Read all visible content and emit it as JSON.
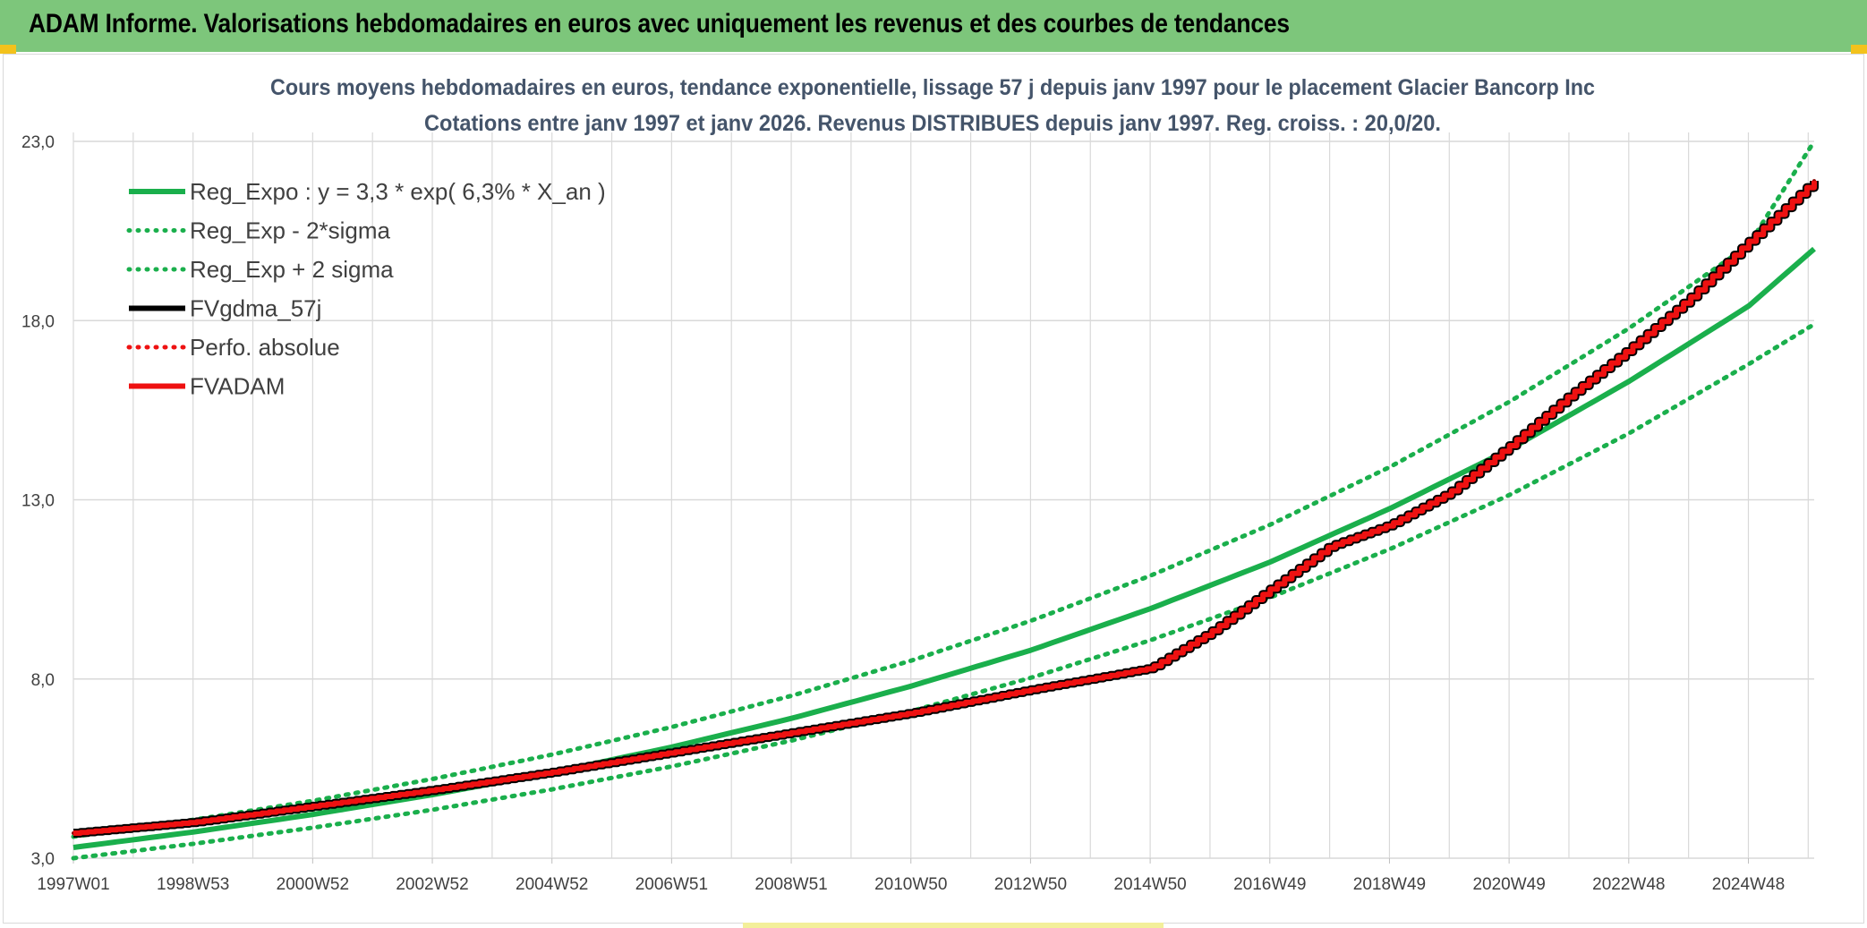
{
  "banner": {
    "title": "ADAM Informe. Valorisations hebdomadaires en euros avec uniquement les revenus et des courbes de tendances"
  },
  "colors": {
    "banner_bg": "#7dc67b",
    "trend_green": "#1aaf4c",
    "adam_red": "#ee1111",
    "gdma_black": "#000000",
    "grid": "#d9d9d9",
    "subtitle": "#44546a"
  },
  "chart_data": {
    "type": "line",
    "title_line1": "Cours moyens hebdomadaires en euros, tendance exponentielle, lissage 57 j depuis janv 1997 pour le placement Glacier Bancorp Inc",
    "title_line2": "Cotations entre janv 1997 et janv 2026. Revenus DISTRIBUES depuis janv 1997. Reg. croiss. : 20,0/20.",
    "xlabel": "",
    "ylabel": "",
    "ylim": [
      3.0,
      23.0
    ],
    "xlim_years": [
      1997.0,
      2026.1
    ],
    "y_ticks": [
      "3,0",
      "8,0",
      "13,0",
      "18,0",
      "23,0"
    ],
    "y_tick_values": [
      3,
      8,
      13,
      18,
      23
    ],
    "x_ticks": [
      "1997W01",
      "1998W53",
      "2000W52",
      "2002W52",
      "2004W52",
      "2006W51",
      "2008W51",
      "2010W50",
      "2012W50",
      "2014W50",
      "2016W49",
      "2018W49",
      "2020W49",
      "2022W48",
      "2024W48"
    ],
    "x_tick_years": [
      1997.0,
      1999.0,
      2001.0,
      2003.0,
      2005.0,
      2007.0,
      2009.0,
      2011.0,
      2013.0,
      2015.0,
      2017.0,
      2019.0,
      2021.0,
      2023.0,
      2025.0
    ],
    "grid": true,
    "legend_position": "top-left",
    "legend": [
      {
        "label": "Reg_Expo : y = 3,3 * exp( 6,3% *  X_an )",
        "color": "#1aaf4c",
        "style": "solid"
      },
      {
        "label": "Reg_Exp - 2*sigma",
        "color": "#1aaf4c",
        "style": "dotted"
      },
      {
        "label": "Reg_Exp + 2 sigma",
        "color": "#1aaf4c",
        "style": "dotted"
      },
      {
        "label": "FVgdma_57j",
        "color": "#000000",
        "style": "solid"
      },
      {
        "label": "Perfo. absolue",
        "color": "#ee1111",
        "style": "dotted"
      },
      {
        "label": "FVADAM",
        "color": "#ee1111",
        "style": "solid"
      }
    ],
    "series": [
      {
        "name": "Reg_Expo : y = 3,3 * exp( 6,3% *  X_an )",
        "x": [
          1997,
          1999,
          2001,
          2003,
          2005,
          2007,
          2009,
          2011,
          2013,
          2015,
          2017,
          2019,
          2021,
          2023,
          2025,
          2026.1
        ],
        "values": [
          3.3,
          3.73,
          4.22,
          4.77,
          5.39,
          6.1,
          6.9,
          7.8,
          8.8,
          9.96,
          11.26,
          12.75,
          14.4,
          16.3,
          18.4,
          20.0
        ]
      },
      {
        "name": "Reg_Exp - 2*sigma",
        "x": [
          1997,
          1999,
          2001,
          2003,
          2005,
          2007,
          2009,
          2011,
          2013,
          2015,
          2017,
          2019,
          2021,
          2023,
          2025,
          2026.1
        ],
        "values": [
          3.0,
          3.4,
          3.85,
          4.35,
          4.92,
          5.56,
          6.28,
          7.1,
          8.03,
          9.08,
          10.27,
          11.62,
          13.13,
          14.85,
          16.78,
          17.9
        ]
      },
      {
        "name": "Reg_Exp + 2 sigma",
        "x": [
          1997,
          1999,
          2001,
          2003,
          2005,
          2007,
          2009,
          2011,
          2013,
          2015,
          2017,
          2019,
          2021,
          2023,
          2025,
          2026.1
        ],
        "values": [
          3.6,
          4.07,
          4.6,
          5.21,
          5.89,
          6.66,
          7.53,
          8.51,
          9.62,
          10.88,
          12.3,
          13.91,
          15.73,
          17.78,
          20.1,
          23.0
        ]
      },
      {
        "name": "FVgdma_57j",
        "x": [
          1997,
          1999,
          2001,
          2003,
          2005,
          2007,
          2009,
          2011,
          2013,
          2014,
          2015,
          2016,
          2017,
          2018,
          2019,
          2020,
          2021,
          2022,
          2023,
          2024,
          2025,
          2026.1
        ],
        "values": [
          3.7,
          4.0,
          4.45,
          4.9,
          5.4,
          5.95,
          6.5,
          7.05,
          7.7,
          8.0,
          8.3,
          9.3,
          10.5,
          11.7,
          12.3,
          13.2,
          14.5,
          15.9,
          17.2,
          18.6,
          20.2,
          21.9
        ]
      },
      {
        "name": "Perfo. absolue",
        "x": [
          1997,
          1999,
          2001,
          2003,
          2005,
          2007,
          2009,
          2011,
          2013,
          2014,
          2015,
          2016,
          2017,
          2018,
          2019,
          2020,
          2021,
          2022,
          2023,
          2024,
          2025,
          2026.1
        ],
        "values": [
          3.7,
          4.0,
          4.45,
          4.9,
          5.4,
          5.95,
          6.5,
          7.05,
          7.7,
          8.0,
          8.3,
          9.3,
          10.5,
          11.7,
          12.3,
          13.2,
          14.5,
          15.9,
          17.2,
          18.6,
          20.2,
          21.9
        ]
      },
      {
        "name": "FVADAM",
        "x": [
          1997,
          1999,
          2001,
          2003,
          2005,
          2007,
          2009,
          2011,
          2013,
          2014,
          2015,
          2016,
          2017,
          2018,
          2019,
          2020,
          2021,
          2022,
          2023,
          2024,
          2025,
          2026.1
        ],
        "values": [
          3.7,
          4.0,
          4.45,
          4.9,
          5.4,
          5.95,
          6.5,
          7.05,
          7.7,
          8.0,
          8.3,
          9.3,
          10.5,
          11.7,
          12.3,
          13.2,
          14.5,
          15.9,
          17.2,
          18.6,
          20.2,
          21.9
        ]
      }
    ]
  }
}
